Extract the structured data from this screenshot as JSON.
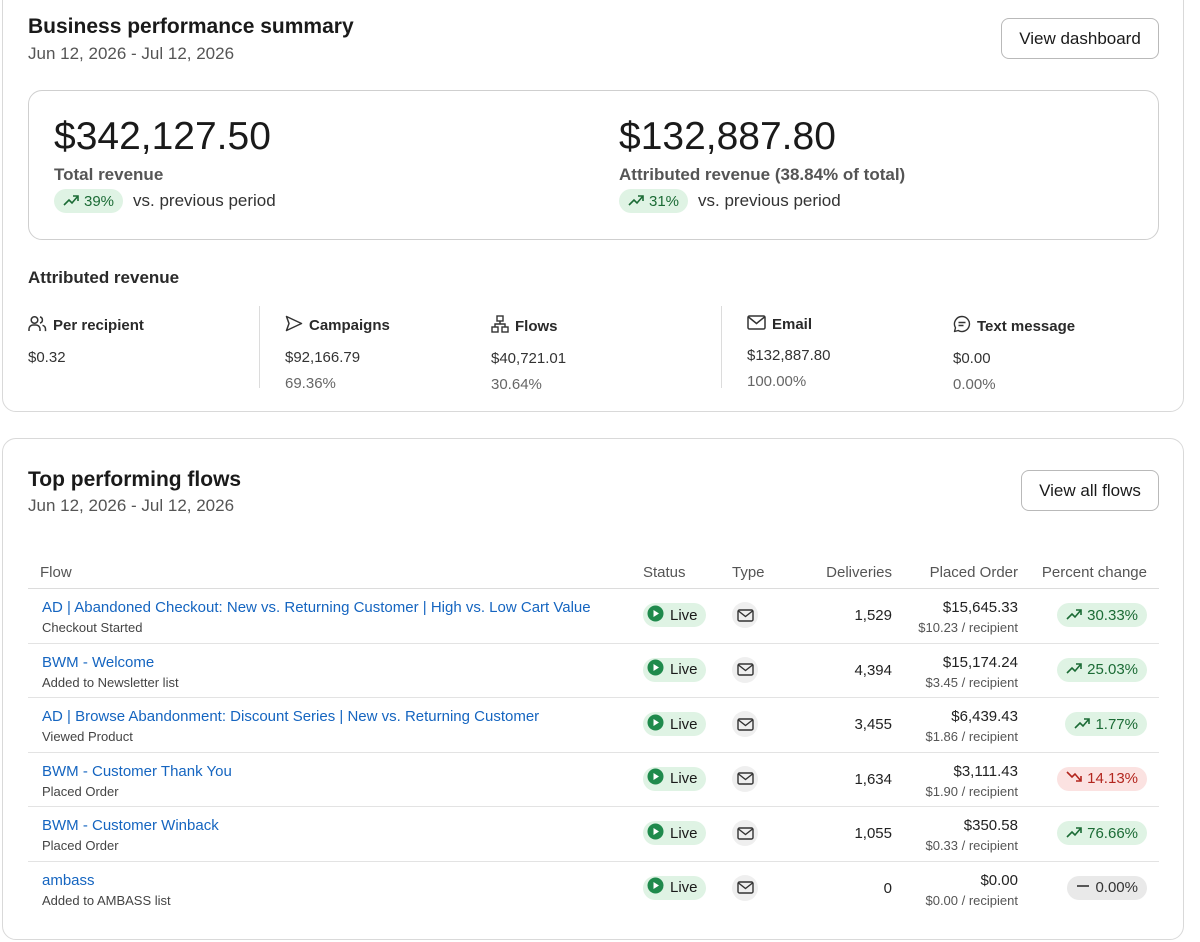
{
  "summary": {
    "title": "Business performance summary",
    "date_range": "Jun 12, 2026 - Jul 12, 2026",
    "view_button": "View dashboard",
    "total": {
      "amount": "$342,127.50",
      "label": "Total revenue",
      "change": "39%",
      "trend": "up",
      "vs_text": "vs. previous period"
    },
    "attributed": {
      "amount": "$132,887.80",
      "label": "Attributed revenue (38.84% of total)",
      "change": "31%",
      "trend": "up",
      "vs_text": "vs. previous period"
    },
    "attributed_title": "Attributed revenue",
    "metrics": [
      {
        "label": "Per recipient",
        "icon": "people-icon",
        "value": "$0.32",
        "percent": ""
      },
      {
        "label": "Campaigns",
        "icon": "send-icon",
        "value": "$92,166.79",
        "percent": "69.36%"
      },
      {
        "label": "Flows",
        "icon": "flow-icon",
        "value": "$40,721.01",
        "percent": "30.64%"
      },
      {
        "label": "Email",
        "icon": "mail-icon",
        "value": "$132,887.80",
        "percent": "100.00%"
      },
      {
        "label": "Text message",
        "icon": "chat-icon",
        "value": "$0.00",
        "percent": "0.00%"
      }
    ]
  },
  "flows": {
    "title": "Top performing flows",
    "date_range": "Jun 12, 2026 - Jul 12, 2026",
    "view_button": "View all flows",
    "columns": {
      "flow": "Flow",
      "status": "Status",
      "type": "Type",
      "deliveries": "Deliveries",
      "placed_order": "Placed Order",
      "percent_change": "Percent change"
    },
    "rows": [
      {
        "name": "AD | Abandoned Checkout: New vs. Returning Customer | High vs. Low Cart Value",
        "trigger": "Checkout Started",
        "status": "Live",
        "type_icon": "mail-icon",
        "deliveries": "1,529",
        "order_amount": "$15,645.33",
        "order_per": "$10.23 / recipient",
        "change": "30.33%",
        "trend": "up"
      },
      {
        "name": "BWM - Welcome",
        "trigger": "Added to Newsletter list",
        "status": "Live",
        "type_icon": "mail-icon",
        "deliveries": "4,394",
        "order_amount": "$15,174.24",
        "order_per": "$3.45 / recipient",
        "change": "25.03%",
        "trend": "up"
      },
      {
        "name": "AD | Browse Abandonment: Discount Series | New vs. Returning Customer",
        "trigger": "Viewed Product",
        "status": "Live",
        "type_icon": "mail-icon",
        "deliveries": "3,455",
        "order_amount": "$6,439.43",
        "order_per": "$1.86 / recipient",
        "change": "1.77%",
        "trend": "up"
      },
      {
        "name": "BWM - Customer Thank You",
        "trigger": "Placed Order",
        "status": "Live",
        "type_icon": "mail-icon",
        "deliveries": "1,634",
        "order_amount": "$3,111.43",
        "order_per": "$1.90 / recipient",
        "change": "14.13%",
        "trend": "down"
      },
      {
        "name": "BWM - Customer Winback",
        "trigger": "Placed Order",
        "status": "Live",
        "type_icon": "mail-icon",
        "deliveries": "1,055",
        "order_amount": "$350.58",
        "order_per": "$0.33 / recipient",
        "change": "76.66%",
        "trend": "up"
      },
      {
        "name": "ambass",
        "trigger": "Added to AMBASS list",
        "status": "Live",
        "type_icon": "mail-icon",
        "deliveries": "0",
        "order_amount": "$0.00",
        "order_per": "$0.00 / recipient",
        "change": "0.00%",
        "trend": "flat"
      }
    ]
  },
  "colors": {
    "link": "#1565c0",
    "positive_bg": "#dff3e4",
    "positive_fg": "#1b6b35",
    "negative_bg": "#fbe2e1",
    "negative_fg": "#b3261e",
    "live_dot": "#1f8a4c"
  }
}
